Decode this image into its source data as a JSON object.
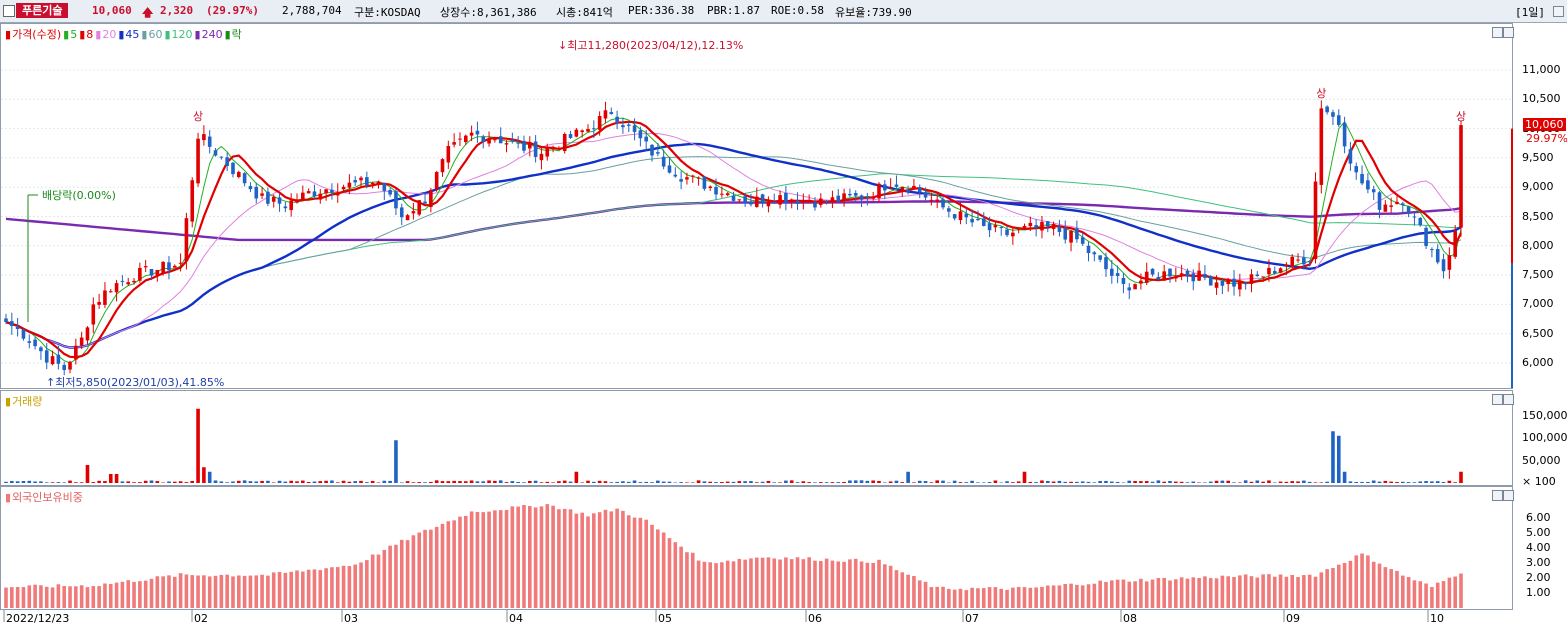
{
  "header": {
    "stock_name": "푸른기술",
    "price": "10,060",
    "change": "2,320",
    "change_pct": "(29.97%)",
    "volume": "2,788,704",
    "market": "구분:KOSDAQ",
    "shares": "상장수:8,361,386",
    "mktcap": "시총:841억",
    "per": "PER:336.38",
    "pbr": "PBR:1.87",
    "roe": "ROE:0.58",
    "float_ratio": "유보율:739.90",
    "period": "[1일]"
  },
  "price_panel": {
    "legend": [
      {
        "label": "가격(수정)",
        "color": "#e00000"
      },
      {
        "label": "5",
        "color": "#22b022"
      },
      {
        "label": "8",
        "color": "#e00000"
      },
      {
        "label": "20",
        "color": "#e080e0"
      },
      {
        "label": "45",
        "color": "#1030c8"
      },
      {
        "label": "60",
        "color": "#6aa0a0"
      },
      {
        "label": "120",
        "color": "#40c080"
      },
      {
        "label": "240",
        "color": "#7a2ab0"
      },
      {
        "label": "락",
        "color": "#1a8a1a"
      }
    ],
    "annotations": {
      "high": "최고11,280(2023/04/12),12.13%",
      "low": "최저5,850(2023/01/03),41.85%",
      "dividend": "배당락(0.00%)",
      "limit_up": "상"
    },
    "yticks": [
      "11,000",
      "10,500",
      "10,000",
      "9,500",
      "9,000",
      "8,500",
      "8,000",
      "7,500",
      "7,000",
      "6,500",
      "6,000"
    ],
    "last_price_label": "10,060",
    "last_pct_label": "29.97%"
  },
  "volume_panel": {
    "title": "거래량",
    "yticks": [
      "150,000",
      "100,000",
      "50,000",
      "× 100"
    ]
  },
  "foreign_panel": {
    "title": "외국인보유비중",
    "yticks": [
      "6.00",
      "5.00",
      "4.00",
      "3.00",
      "2.00",
      "1.00"
    ]
  },
  "xaxis": {
    "labels": [
      "2022/12/23",
      "02",
      "03",
      "04",
      "05",
      "06",
      "07",
      "08",
      "09",
      "10"
    ]
  },
  "colors": {
    "up": "#e00000",
    "down": "#1f63c6",
    "foreign_bar": "#f07a7a"
  },
  "chart_data": [
    {
      "type": "candlestick",
      "title": "가격(수정)",
      "ylim": [
        5500,
        11500
      ],
      "anchor_points": [
        [
          0,
          6700
        ],
        [
          3,
          6500
        ],
        [
          7,
          6100
        ],
        [
          10,
          5900
        ],
        [
          13,
          6400
        ],
        [
          15,
          7000
        ],
        [
          18,
          7300
        ],
        [
          22,
          7500
        ],
        [
          26,
          7600
        ],
        [
          30,
          7700
        ],
        [
          33,
          9900
        ],
        [
          36,
          9600
        ],
        [
          40,
          9200
        ],
        [
          44,
          8800
        ],
        [
          48,
          8700
        ],
        [
          52,
          8900
        ],
        [
          56,
          9000
        ],
        [
          60,
          9050
        ],
        [
          64,
          9100
        ],
        [
          68,
          8500
        ],
        [
          72,
          8800
        ],
        [
          76,
          9600
        ],
        [
          80,
          9900
        ],
        [
          84,
          9850
        ],
        [
          88,
          9700
        ],
        [
          92,
          9600
        ],
        [
          96,
          9800
        ],
        [
          100,
          10000
        ],
        [
          104,
          10300
        ],
        [
          108,
          9900
        ],
        [
          112,
          9500
        ],
        [
          116,
          9200
        ],
        [
          120,
          9050
        ],
        [
          124,
          8900
        ],
        [
          128,
          8750
        ],
        [
          132,
          8850
        ],
        [
          136,
          8800
        ],
        [
          140,
          8750
        ],
        [
          144,
          8800
        ],
        [
          148,
          8850
        ],
        [
          152,
          9100
        ],
        [
          156,
          9000
        ],
        [
          160,
          8700
        ],
        [
          164,
          8500
        ],
        [
          168,
          8300
        ],
        [
          172,
          8200
        ],
        [
          176,
          8300
        ],
        [
          180,
          8300
        ],
        [
          184,
          8100
        ],
        [
          188,
          7700
        ],
        [
          192,
          7300
        ],
        [
          196,
          7450
        ],
        [
          200,
          7550
        ],
        [
          204,
          7500
        ],
        [
          208,
          7400
        ],
        [
          212,
          7350
        ],
        [
          216,
          7500
        ],
        [
          220,
          7700
        ],
        [
          224,
          7800
        ],
        [
          226,
          10400
        ],
        [
          229,
          10100
        ],
        [
          232,
          9200
        ],
        [
          236,
          8700
        ],
        [
          240,
          8800
        ],
        [
          244,
          8100
        ],
        [
          247,
          7600
        ],
        [
          249,
          8200
        ],
        [
          250,
          10060
        ]
      ],
      "volume_spikes": [
        [
          14,
          40000
        ],
        [
          18,
          20000
        ],
        [
          19,
          20000
        ],
        [
          33,
          165000
        ],
        [
          34,
          35000
        ],
        [
          35,
          25000
        ],
        [
          67,
          95000
        ],
        [
          98,
          25000
        ],
        [
          155,
          25000
        ],
        [
          175,
          25000
        ],
        [
          228,
          115000
        ],
        [
          229,
          105000
        ],
        [
          230,
          25000
        ],
        [
          250,
          25000
        ]
      ],
      "foreign_anchor": [
        [
          0,
          1.4
        ],
        [
          15,
          1.5
        ],
        [
          30,
          2.2
        ],
        [
          45,
          2.2
        ],
        [
          60,
          2.9
        ],
        [
          70,
          4.8
        ],
        [
          80,
          6.4
        ],
        [
          93,
          6.9
        ],
        [
          100,
          6.2
        ],
        [
          105,
          6.6
        ],
        [
          110,
          5.8
        ],
        [
          120,
          3.0
        ],
        [
          130,
          3.4
        ],
        [
          150,
          3.1
        ],
        [
          160,
          1.3
        ],
        [
          175,
          1.3
        ],
        [
          190,
          1.8
        ],
        [
          210,
          2.1
        ],
        [
          225,
          2.2
        ],
        [
          233,
          3.6
        ],
        [
          240,
          2.2
        ],
        [
          245,
          1.4
        ],
        [
          250,
          2.4
        ]
      ],
      "ma_periods": [
        5,
        8,
        20,
        45,
        60,
        120,
        240
      ]
    }
  ]
}
